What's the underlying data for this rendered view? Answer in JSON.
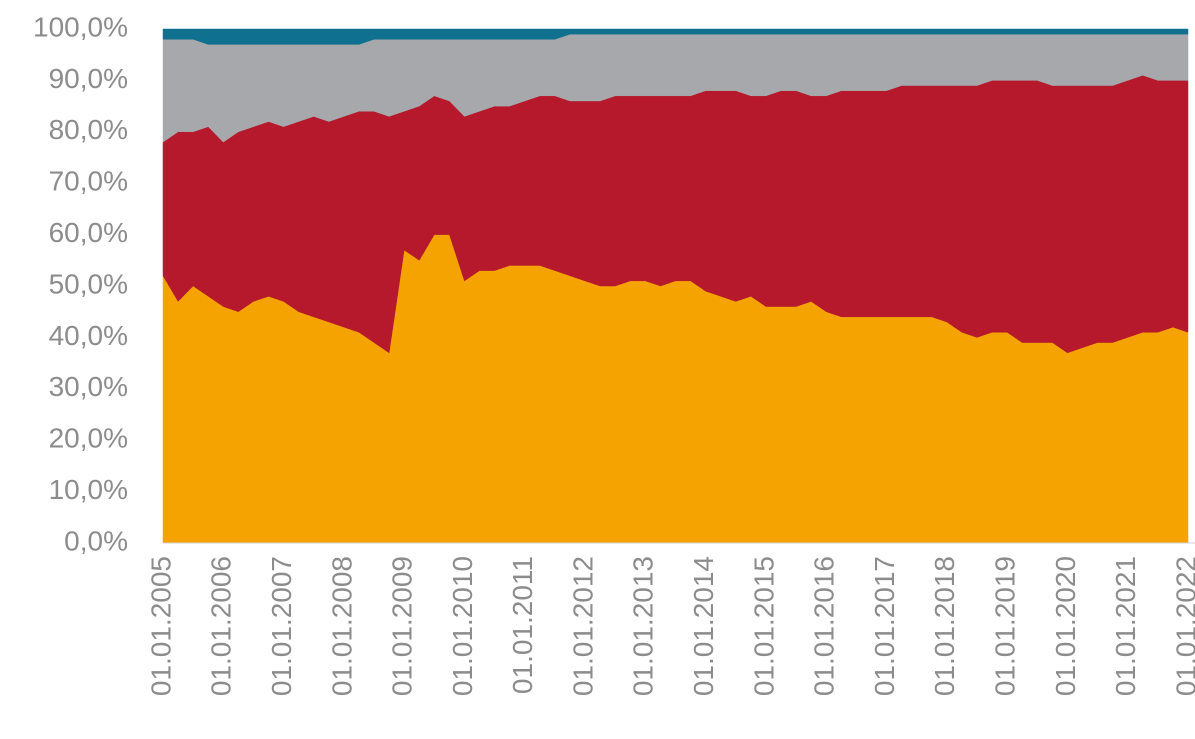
{
  "chart_data": {
    "type": "stacked_area",
    "categories": [
      "01.01.2005",
      null,
      null,
      null,
      "01.01.2006",
      null,
      null,
      null,
      "01.01.2007",
      null,
      null,
      null,
      "01.01.2008",
      null,
      null,
      null,
      "01.01.2009",
      null,
      null,
      null,
      "01.01.2010",
      null,
      null,
      null,
      "01.01.2011",
      null,
      null,
      null,
      "01.01.2012",
      null,
      null,
      null,
      "01.01.2013",
      null,
      null,
      null,
      "01.01.2014",
      null,
      null,
      null,
      "01.01.2015",
      null,
      null,
      null,
      "01.01.2016",
      null,
      null,
      null,
      "01.01.2017",
      null,
      null,
      null,
      "01.01.2018",
      null,
      null,
      null,
      "01.01.2019",
      null,
      null,
      null,
      "01.01.2020",
      null,
      null,
      null,
      "01.01.2021",
      null,
      null,
      null,
      "01.01.2022"
    ],
    "series": [
      {
        "color": "#f5a300",
        "values": [
          52,
          47,
          50,
          48,
          46,
          45,
          47,
          48,
          47,
          45,
          44,
          43,
          42,
          41,
          39,
          37,
          57,
          55,
          60,
          60,
          51,
          53,
          53,
          54,
          54,
          54,
          53,
          52,
          51,
          50,
          50,
          51,
          51,
          50,
          51,
          51,
          49,
          48,
          47,
          48,
          46,
          46,
          46,
          47,
          45,
          44,
          44,
          44,
          44,
          44,
          44,
          44,
          43,
          41,
          40,
          41,
          41,
          39,
          39,
          39,
          37,
          38,
          39,
          39,
          40,
          41,
          41,
          42,
          41
        ]
      },
      {
        "color": "#b5192b",
        "values": [
          26,
          33,
          30,
          33,
          32,
          35,
          34,
          34,
          34,
          37,
          39,
          39,
          41,
          43,
          45,
          46,
          27,
          30,
          27,
          26,
          32,
          31,
          32,
          31,
          32,
          33,
          34,
          34,
          35,
          36,
          37,
          36,
          36,
          37,
          36,
          36,
          39,
          40,
          41,
          39,
          41,
          42,
          42,
          40,
          42,
          44,
          44,
          44,
          44,
          45,
          45,
          45,
          46,
          48,
          49,
          49,
          49,
          51,
          51,
          50,
          52,
          51,
          50,
          50,
          50,
          50,
          49,
          48,
          49
        ]
      },
      {
        "color": "#a6a8ab",
        "values": [
          20,
          18,
          18,
          16,
          19,
          17,
          16,
          15,
          16,
          15,
          14,
          15,
          14,
          13,
          14,
          15,
          14,
          13,
          11,
          12,
          15,
          14,
          13,
          13,
          12,
          11,
          11,
          13,
          13,
          13,
          12,
          12,
          12,
          12,
          12,
          12,
          11,
          11,
          11,
          12,
          12,
          11,
          11,
          12,
          12,
          11,
          11,
          11,
          11,
          10,
          10,
          10,
          10,
          10,
          10,
          9,
          9,
          9,
          9,
          10,
          10,
          10,
          10,
          10,
          9,
          8,
          9,
          9,
          9
        ]
      },
      {
        "color": "#10708f",
        "values": [
          2,
          2,
          2,
          3,
          3,
          3,
          3,
          3,
          3,
          3,
          3,
          3,
          3,
          3,
          2,
          2,
          2,
          2,
          2,
          2,
          2,
          2,
          2,
          2,
          2,
          2,
          2,
          1,
          1,
          1,
          1,
          1,
          1,
          1,
          1,
          1,
          1,
          1,
          1,
          1,
          1,
          1,
          1,
          1,
          1,
          1,
          1,
          1,
          1,
          1,
          1,
          1,
          1,
          1,
          1,
          1,
          1,
          1,
          1,
          1,
          1,
          1,
          1,
          1,
          1,
          1,
          1,
          1,
          1
        ]
      }
    ],
    "ylim": [
      0,
      100
    ],
    "yticks": [
      {
        "value": 0,
        "label": "0,0%"
      },
      {
        "value": 10,
        "label": "10,0%"
      },
      {
        "value": 20,
        "label": "20,0%"
      },
      {
        "value": 30,
        "label": "30,0%"
      },
      {
        "value": 40,
        "label": "40,0%"
      },
      {
        "value": 50,
        "label": "50,0%"
      },
      {
        "value": 60,
        "label": "60,0%"
      },
      {
        "value": 70,
        "label": "70,0%"
      },
      {
        "value": 80,
        "label": "80,0%"
      },
      {
        "value": 90,
        "label": "90,0%"
      },
      {
        "value": 100,
        "label": "100,0%"
      }
    ],
    "grid": false
  }
}
